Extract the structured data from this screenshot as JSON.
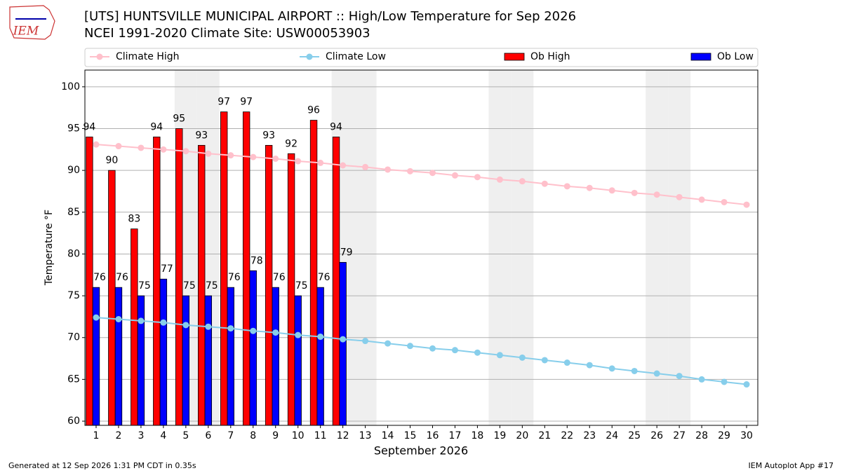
{
  "chart_data": {
    "type": "bar",
    "logo_text": "IEM",
    "title": "[UTS] HUNTSVILLE MUNICIPAL AIRPORT :: High/Low Temperature for Sep 2026",
    "subtitle": "NCEI 1991-2020 Climate Site: USW00053903",
    "x_label": "September 2026",
    "y_label": "Temperature °F",
    "x": [
      1,
      2,
      3,
      4,
      5,
      6,
      7,
      8,
      9,
      10,
      11,
      12,
      13,
      14,
      15,
      16,
      17,
      18,
      19,
      20,
      21,
      22,
      23,
      24,
      25,
      26,
      27,
      28,
      29,
      30
    ],
    "xlim": [
      0.5,
      30.5
    ],
    "xticks": [
      1,
      2,
      3,
      4,
      5,
      6,
      7,
      8,
      9,
      10,
      11,
      12,
      13,
      14,
      15,
      16,
      17,
      18,
      19,
      20,
      21,
      22,
      23,
      24,
      25,
      26,
      27,
      28,
      29,
      30
    ],
    "ylim": [
      59.5,
      102
    ],
    "yticks": [
      60,
      65,
      70,
      75,
      80,
      85,
      90,
      95,
      100
    ],
    "grid": true,
    "shaded_days": [
      5,
      6,
      12,
      13,
      19,
      20,
      26,
      27
    ],
    "series": [
      {
        "name": "Climate High",
        "type": "line",
        "color": "#ffc0cb",
        "values": [
          93.1,
          92.9,
          92.7,
          92.5,
          92.3,
          92.0,
          91.8,
          91.6,
          91.4,
          91.1,
          90.9,
          90.6,
          90.4,
          90.1,
          89.9,
          89.7,
          89.4,
          89.2,
          88.9,
          88.7,
          88.4,
          88.1,
          87.9,
          87.6,
          87.3,
          87.1,
          86.8,
          86.5,
          86.2,
          85.9
        ]
      },
      {
        "name": "Climate Low",
        "type": "line",
        "color": "#87ceeb",
        "values": [
          72.4,
          72.2,
          72.0,
          71.8,
          71.5,
          71.3,
          71.1,
          70.8,
          70.6,
          70.3,
          70.1,
          69.8,
          69.6,
          69.3,
          69.0,
          68.7,
          68.5,
          68.2,
          67.9,
          67.6,
          67.3,
          67.0,
          66.7,
          66.3,
          66.0,
          65.7,
          65.4,
          65.0,
          64.7,
          64.4
        ]
      },
      {
        "name": "Ob High",
        "type": "bar",
        "color": "#ff0000",
        "values": [
          94,
          90,
          83,
          94,
          95,
          93,
          97,
          97,
          93,
          92,
          96,
          94,
          null,
          null,
          null,
          null,
          null,
          null,
          null,
          null,
          null,
          null,
          null,
          null,
          null,
          null,
          null,
          null,
          null,
          null
        ]
      },
      {
        "name": "Ob Low",
        "type": "bar",
        "color": "#0000ff",
        "values": [
          76,
          76,
          75,
          77,
          75,
          75,
          76,
          78,
          76,
          75,
          76,
          79,
          null,
          null,
          null,
          null,
          null,
          null,
          null,
          null,
          null,
          null,
          null,
          null,
          null,
          null,
          null,
          null,
          null,
          null
        ]
      }
    ],
    "footer_left": "Generated at 12 Sep 2026 1:31 PM CDT in 0.35s",
    "footer_right": "IEM Autoplot App #17"
  }
}
